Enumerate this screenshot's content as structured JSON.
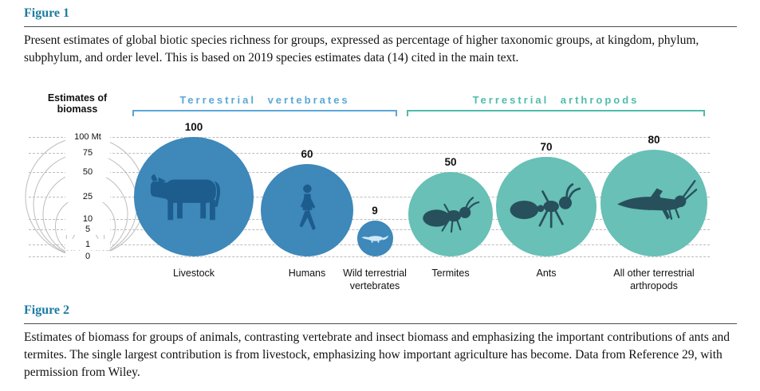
{
  "figure1": {
    "heading": "Figure 1",
    "caption": "Present estimates of global biotic species richness for groups, expressed as percentage of higher taxonomic groups, at kingdom, phylum, subphylum, and order level. This is based on 2019 species estimates data (14) cited in the main text."
  },
  "figure2": {
    "heading": "Figure 2",
    "caption": "Estimates of biomass for groups of animals, contrasting vertebrate and insect biomass and emphasizing the important contributions of ants and termites. The single largest contribution is from livestock, emphasizing how important agriculture has become. Data from Reference 29, with permission from Wiley."
  },
  "colors": {
    "heading_accent": "#1c7ba3",
    "vertebrates_accent": "#5aa7d8",
    "arthropods_accent": "#4fbcab"
  },
  "chart_data": {
    "type": "bubble",
    "scale_title": "Estimates of biomass",
    "scale_unit": "Mt",
    "scale_ticks": [
      100,
      75,
      50,
      25,
      10,
      5,
      1,
      0
    ],
    "unit": "Mt",
    "groups": [
      {
        "label": "Terrestrial vertebrates",
        "color": "#5aa7d8",
        "bubble_color": "#3e88ba",
        "icon_color": "#1c5d8d"
      },
      {
        "label": "Terrestrial arthropods",
        "color": "#4fbcab",
        "bubble_color": "#68c0b6",
        "icon_color": "#27505c"
      }
    ],
    "items": [
      {
        "label": "Livestock",
        "value": 100,
        "group": 0,
        "icon": "cow-icon"
      },
      {
        "label": "Humans",
        "value": 60,
        "group": 0,
        "icon": "human-icon"
      },
      {
        "label": "Wild terrestrial vertebrates",
        "value": 9,
        "group": 0,
        "icon": "wild-vertebrate-icon",
        "icon_color": "#cfe9f6"
      },
      {
        "label": "Termites",
        "value": 50,
        "group": 1,
        "icon": "termite-icon"
      },
      {
        "label": "Ants",
        "value": 70,
        "group": 1,
        "icon": "ant-icon"
      },
      {
        "label": "All other terrestrial arthropods",
        "value": 80,
        "group": 1,
        "icon": "grasshopper-icon"
      }
    ]
  }
}
